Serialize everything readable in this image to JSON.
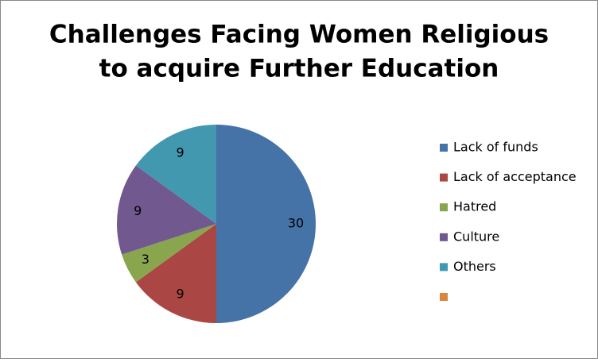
{
  "chart_data": {
    "type": "pie",
    "title": [
      "Challenges Facing Women Religious",
      "to acquire Further Education"
    ],
    "categories": [
      "Lack of funds",
      "Lack of acceptance",
      "Hatred",
      "Culture",
      "Others",
      null
    ],
    "values": [
      30,
      9,
      3,
      9,
      9,
      0
    ],
    "colors": [
      "#4572a7",
      "#aa4643",
      "#89a54e",
      "#71588f",
      "#4198af",
      "#db843d"
    ],
    "legend": "right"
  }
}
